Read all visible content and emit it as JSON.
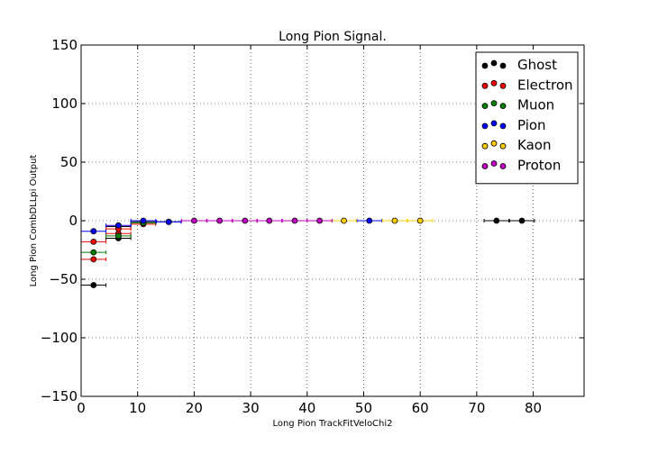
{
  "chart_data": {
    "type": "scatter",
    "title": "Long Pion Signal.",
    "xlabel": "Long Pion TrackFitVeloChi2",
    "ylabel": "Long Pion CombDLLpi Output",
    "xlim": [
      0,
      89
    ],
    "ylim": [
      -150,
      150
    ],
    "xticks": [
      0,
      10,
      20,
      30,
      40,
      50,
      60,
      70,
      80
    ],
    "yticks": [
      -150,
      -100,
      -50,
      0,
      50,
      100,
      150
    ],
    "xtick_labels": [
      "0",
      "10",
      "20",
      "30",
      "40",
      "50",
      "60",
      "70",
      "80"
    ],
    "ytick_labels": [
      "−150",
      "−100",
      "−50",
      "0",
      "50",
      "100",
      "150"
    ],
    "grid": true,
    "legend_position": "top-right",
    "series": [
      {
        "name": "Ghost",
        "color": "#000000",
        "points": [
          {
            "x": 2.2,
            "y": -55,
            "xerr": 2.2
          },
          {
            "x": 6.6,
            "y": -15,
            "xerr": 2.2
          },
          {
            "x": 6.6,
            "y": -5,
            "xerr": 2.2
          },
          {
            "x": 11.0,
            "y": -1,
            "xerr": 2.2
          },
          {
            "x": 15.5,
            "y": -1,
            "xerr": 2.2
          },
          {
            "x": 73.5,
            "y": 0,
            "xerr": 2.2
          },
          {
            "x": 78.0,
            "y": 0,
            "xerr": 2.2
          }
        ]
      },
      {
        "name": "Electron",
        "color": "#ff0000",
        "points": [
          {
            "x": 2.2,
            "y": -33,
            "xerr": 2.2
          },
          {
            "x": 2.2,
            "y": -18,
            "xerr": 2.2
          },
          {
            "x": 6.6,
            "y": -11,
            "xerr": 2.2
          },
          {
            "x": 6.6,
            "y": -7,
            "xerr": 2.2
          },
          {
            "x": 11.0,
            "y": -3,
            "xerr": 2.2
          }
        ]
      },
      {
        "name": "Muon",
        "color": "#008000",
        "points": [
          {
            "x": 2.2,
            "y": -27,
            "xerr": 2.2
          },
          {
            "x": 6.6,
            "y": -13,
            "xerr": 2.2
          },
          {
            "x": 11.0,
            "y": -2,
            "xerr": 2.2
          }
        ]
      },
      {
        "name": "Pion",
        "color": "#0000ff",
        "points": [
          {
            "x": 2.2,
            "y": -9,
            "xerr": 2.2
          },
          {
            "x": 6.6,
            "y": -4,
            "xerr": 2.2
          },
          {
            "x": 11.0,
            "y": 0,
            "xerr": 2.2
          },
          {
            "x": 15.5,
            "y": -1,
            "xerr": 2.2
          },
          {
            "x": 51.0,
            "y": 0,
            "xerr": 2.2
          }
        ]
      },
      {
        "name": "Kaon",
        "color": "#ffcc00",
        "points": [
          {
            "x": 46.5,
            "y": 0,
            "xerr": 2.2
          },
          {
            "x": 55.5,
            "y": 0,
            "xerr": 2.2
          },
          {
            "x": 60.0,
            "y": 0,
            "xerr": 2.2
          }
        ]
      },
      {
        "name": "Proton",
        "color": "#bf00bf",
        "points": [
          {
            "x": 20.0,
            "y": 0,
            "xerr": 2.2
          },
          {
            "x": 24.5,
            "y": 0,
            "xerr": 2.2
          },
          {
            "x": 29.0,
            "y": 0,
            "xerr": 2.2
          },
          {
            "x": 33.3,
            "y": 0,
            "xerr": 2.2
          },
          {
            "x": 37.8,
            "y": 0,
            "xerr": 2.2
          },
          {
            "x": 42.2,
            "y": 0,
            "xerr": 2.2
          }
        ]
      }
    ]
  }
}
